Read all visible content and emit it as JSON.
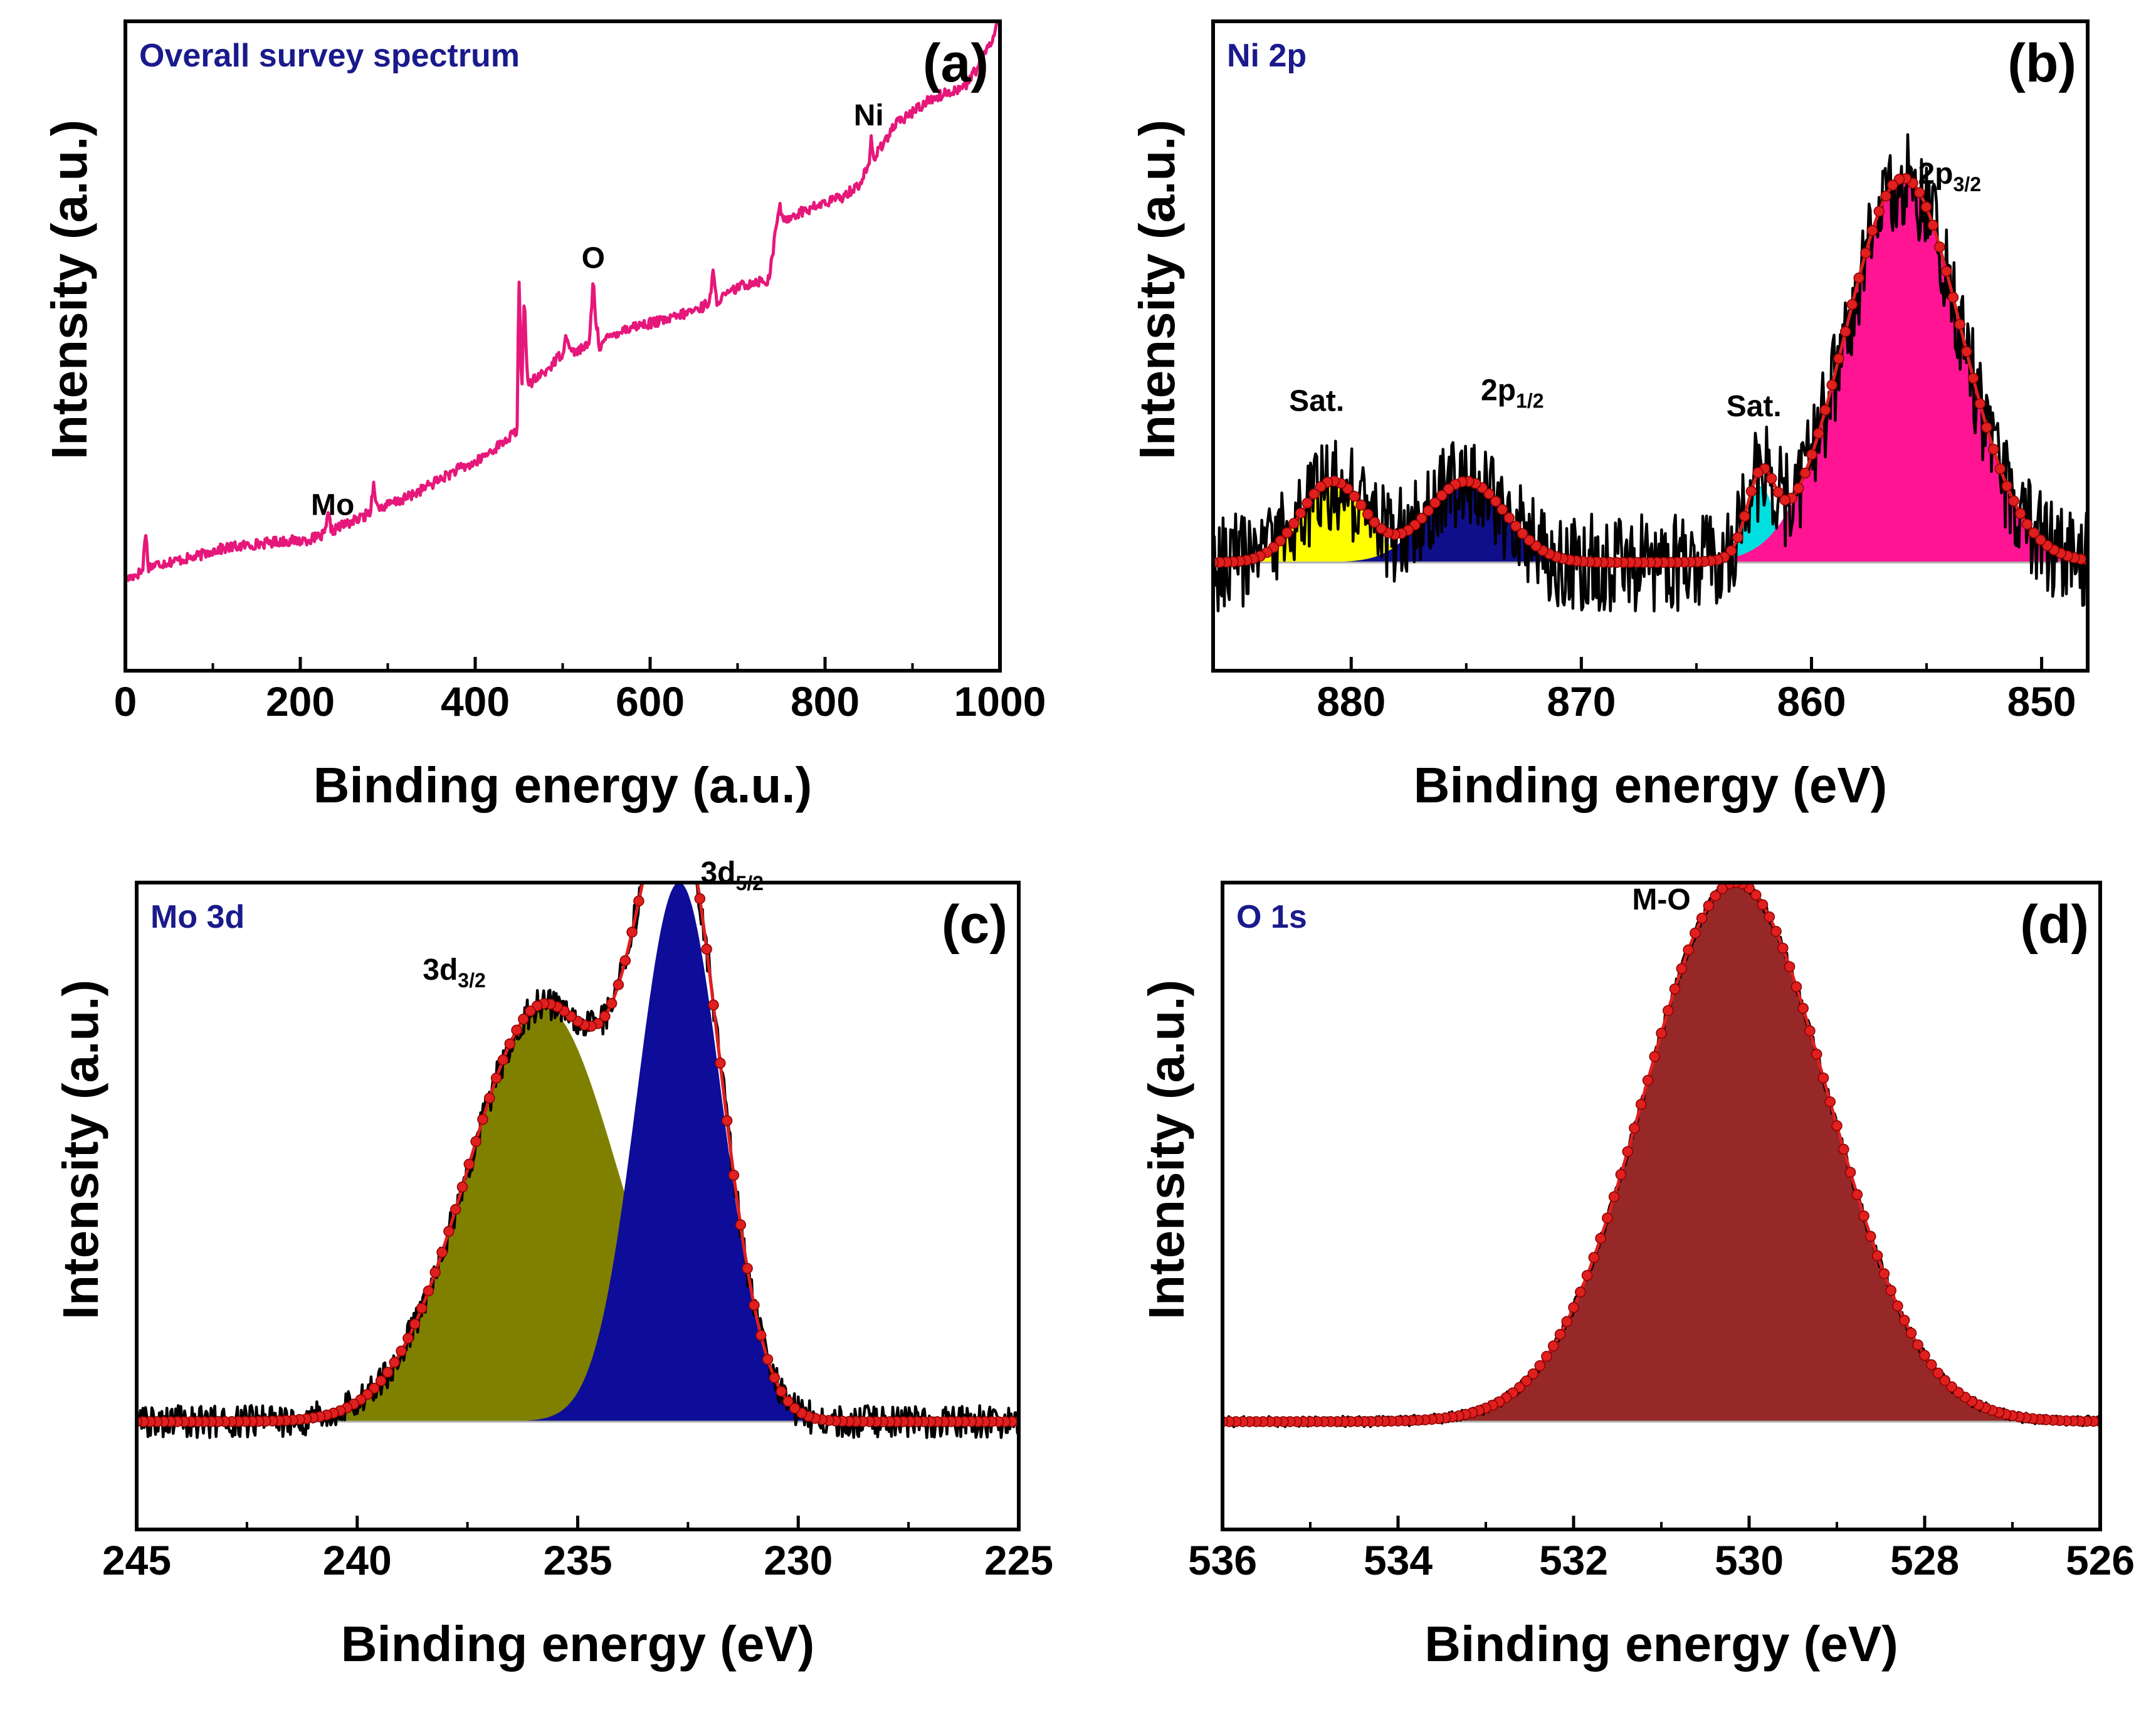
{
  "figure": {
    "colors": {
      "frame": "#000000",
      "title": "#1a1a8c",
      "fit": "#e01f1f",
      "raw": "#000000"
    }
  },
  "chart_data": [
    {
      "id": "a",
      "type": "line",
      "title": "Overall survey spectrum",
      "panel_label": "(a)",
      "xlabel": "Binding energy (a.u.)",
      "ylabel": "Intensity (a.u.)",
      "xlim": [
        0,
        1000
      ],
      "ylim": [
        0,
        100
      ],
      "x_reversed": false,
      "xticks": [
        0,
        200,
        400,
        600,
        800,
        1000
      ],
      "xtick_labels": [
        "0",
        "200",
        "400",
        "600",
        "800",
        "1000"
      ],
      "series": [
        {
          "name": "survey",
          "color": "#e6177a",
          "points": [
            [
              0,
              14
            ],
            [
              15,
              15
            ],
            [
              20,
              15.5
            ],
            [
              23,
              22
            ],
            [
              26,
              16
            ],
            [
              40,
              16.5
            ],
            [
              60,
              17
            ],
            [
              80,
              17.5
            ],
            [
              100,
              18.5
            ],
            [
              120,
              19
            ],
            [
              150,
              19.5
            ],
            [
              180,
              20
            ],
            [
              200,
              20
            ],
            [
              220,
              20.5
            ],
            [
              228,
              21
            ],
            [
              232,
              24
            ],
            [
              236,
              21.5
            ],
            [
              250,
              22.5
            ],
            [
              270,
              23.5
            ],
            [
              280,
              24.5
            ],
            [
              284,
              29
            ],
            [
              288,
              25
            ],
            [
              300,
              25.5
            ],
            [
              320,
              26.5
            ],
            [
              340,
              28
            ],
            [
              360,
              29.5
            ],
            [
              380,
              31
            ],
            [
              400,
              32
            ],
            [
              420,
              34
            ],
            [
              440,
              36
            ],
            [
              448,
              37
            ],
            [
              450,
              62
            ],
            [
              453,
              42
            ],
            [
              456,
              58
            ],
            [
              460,
              44
            ],
            [
              470,
              45
            ],
            [
              480,
              46
            ],
            [
              490,
              47.5
            ],
            [
              500,
              49
            ],
            [
              505,
              52
            ],
            [
              510,
              49
            ],
            [
              520,
              49.5
            ],
            [
              530,
              50
            ],
            [
              535,
              60
            ],
            [
              538,
              54
            ],
            [
              542,
              50
            ],
            [
              550,
              51
            ],
            [
              560,
              52
            ],
            [
              580,
              53
            ],
            [
              600,
              53.5
            ],
            [
              620,
              54
            ],
            [
              640,
              55
            ],
            [
              660,
              56
            ],
            [
              668,
              57
            ],
            [
              672,
              61
            ],
            [
              676,
              57
            ],
            [
              690,
              58
            ],
            [
              700,
              59
            ],
            [
              720,
              60
            ],
            [
              735,
              60
            ],
            [
              740,
              64
            ],
            [
              744,
              68
            ],
            [
              748,
              72
            ],
            [
              752,
              69
            ],
            [
              760,
              70
            ],
            [
              780,
              71
            ],
            [
              800,
              72
            ],
            [
              820,
              73
            ],
            [
              840,
              75
            ],
            [
              850,
              78
            ],
            [
              853,
              82
            ],
            [
              856,
              78
            ],
            [
              860,
              80
            ],
            [
              870,
              82
            ],
            [
              880,
              84
            ],
            [
              900,
              86
            ],
            [
              920,
              88
            ],
            [
              940,
              89
            ],
            [
              960,
              90
            ],
            [
              970,
              92
            ],
            [
              980,
              94
            ],
            [
              990,
              97
            ],
            [
              998,
              100
            ]
          ],
          "noise": 0.8
        }
      ],
      "annotations": [
        {
          "text": "Mo",
          "x": 237,
          "y": 24
        },
        {
          "text": "O",
          "x": 535,
          "y": 62
        },
        {
          "text": "Ni",
          "x": 850,
          "y": 84
        }
      ]
    },
    {
      "id": "b",
      "type": "area",
      "title": "Ni 2p",
      "panel_label": "(b)",
      "xlabel": "Binding energy (eV)",
      "ylabel": "Intensity (a.u.)",
      "xlim": [
        886,
        848
      ],
      "ylim": [
        -20,
        100
      ],
      "x_reversed": true,
      "xticks": [
        880,
        870,
        860,
        850
      ],
      "xtick_labels": [
        "880",
        "870",
        "860",
        "850"
      ],
      "baseline": 0,
      "components": [
        {
          "name": "Sat.",
          "center": 880.8,
          "height": 15,
          "width": 1.4,
          "color": "#ffff00"
        },
        {
          "name": "2p1/2",
          "center": 875.0,
          "height": 15,
          "width": 1.7,
          "color": "#0f0f8c"
        },
        {
          "name": "Sat.",
          "center": 862.2,
          "height": 14,
          "width": 0.6,
          "color": "#00e0e0"
        },
        {
          "name": "2p3/2",
          "center": 856.0,
          "height": 71,
          "width": 2.5,
          "color": "#ff1493"
        }
      ],
      "raw_noise": 9,
      "annotations": [
        {
          "text": "Sat.",
          "x": 881.5,
          "y": 28
        },
        {
          "text": "2p",
          "sub": "1/2",
          "x": 873.0,
          "y": 30
        },
        {
          "text": "Sat.",
          "x": 862.5,
          "y": 27
        },
        {
          "text": "2p",
          "sub": "3/2",
          "x": 854.0,
          "y": 70
        }
      ]
    },
    {
      "id": "c",
      "type": "area",
      "title": "Mo 3d",
      "panel_label": "(c)",
      "xlabel": "Binding energy (eV)",
      "ylabel": "Intensity (a.u.)",
      "xlim": [
        245,
        225
      ],
      "ylim": [
        -20,
        100
      ],
      "x_reversed": true,
      "xticks": [
        245,
        240,
        235,
        230,
        225
      ],
      "xtick_labels": [
        "245",
        "240",
        "235",
        "230",
        "225"
      ],
      "baseline": 0,
      "components": [
        {
          "name": "3d3/2",
          "center": 235.8,
          "height": 77,
          "width": 1.7,
          "color": "#808000"
        },
        {
          "name": "3d5/2",
          "center": 232.7,
          "height": 100,
          "width": 0.95,
          "color": "#0d0d99"
        }
      ],
      "raw_noise": 3,
      "annotations": [
        {
          "text": "3d",
          "sub": "3/2",
          "x": 237.8,
          "y": 82
        },
        {
          "text": "3d",
          "sub": "5/2",
          "x": 231.5,
          "y": 100
        }
      ]
    },
    {
      "id": "d",
      "type": "area",
      "title": "O 1s",
      "panel_label": "(d)",
      "xlabel": "Binding energy (eV)",
      "ylabel": "Intensity (a.u.)",
      "xlim": [
        536,
        526
      ],
      "ylim": [
        -20,
        100
      ],
      "x_reversed": true,
      "xticks": [
        536,
        534,
        532,
        530,
        528,
        526
      ],
      "xtick_labels": [
        "536",
        "534",
        "532",
        "530",
        "528",
        "526"
      ],
      "baseline": 0,
      "components": [
        {
          "name": "M-O",
          "center": 530.15,
          "height": 100,
          "width": 1.05,
          "color": "#962828"
        }
      ],
      "raw_noise": 1,
      "annotations": [
        {
          "text": "M-O",
          "x": 531.0,
          "y": 95
        }
      ]
    }
  ]
}
